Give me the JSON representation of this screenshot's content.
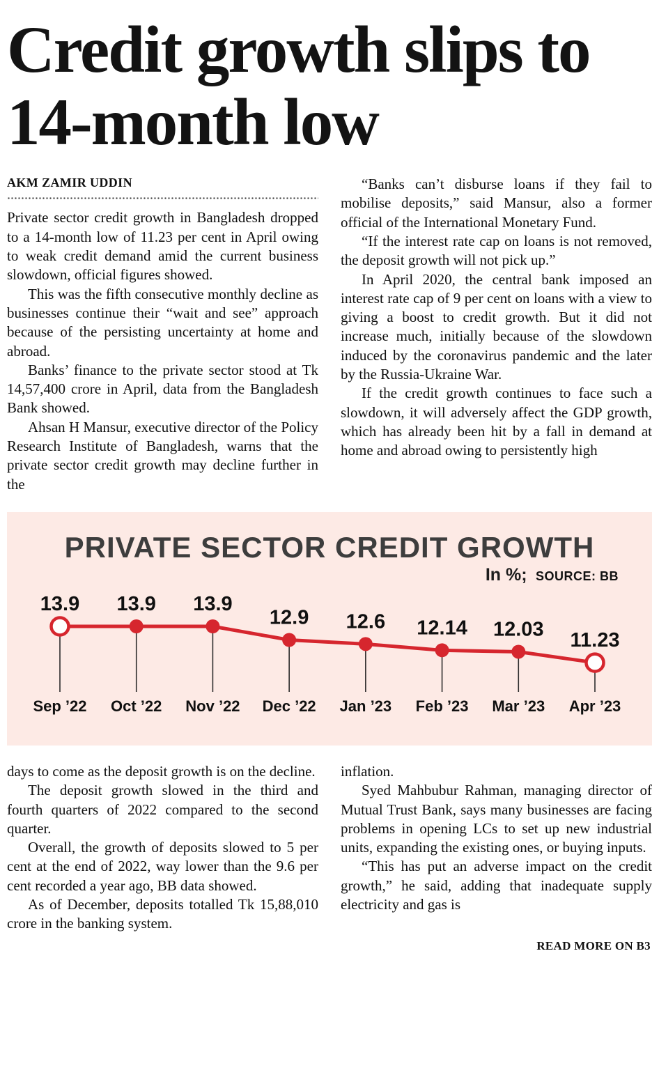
{
  "article": {
    "headline": "Credit growth slips to 14-month low",
    "byline": "AKM ZAMIR UDDIN",
    "read_more": "READ MORE ON B3",
    "top_left_paragraphs": [
      {
        "indent": false,
        "text": "Private sector credit growth in Bangladesh dropped to a 14-month low of 11.23 per cent in April owing to weak credit demand amid the current business slowdown, official figures showed."
      },
      {
        "indent": true,
        "text": "This was the fifth consecutive monthly decline as businesses continue their “wait and see” approach because of the persisting uncertainty at home and abroad."
      },
      {
        "indent": true,
        "text": "Banks’ finance to the private sector stood at Tk 14,57,400 crore in April, data from the Bangladesh Bank showed."
      },
      {
        "indent": true,
        "text": "Ahsan H Mansur, executive director of the Policy Research Institute of Bangladesh, warns that the private sector credit growth may decline further in the"
      }
    ],
    "top_right_paragraphs": [
      {
        "indent": true,
        "text": "“Banks can’t disburse loans if they fail to mobilise deposits,” said Mansur, also a former official of the International Monetary Fund."
      },
      {
        "indent": true,
        "text": "“If the interest rate cap on loans is not removed, the deposit growth will not pick up.”"
      },
      {
        "indent": true,
        "text": "In April 2020, the central bank imposed an interest rate cap of 9 per cent on loans with a view to giving a boost to credit growth. But it did not increase much, initially because of the slowdown induced by the coronavirus pandemic and the later by the Russia-Ukraine War."
      },
      {
        "indent": true,
        "text": "If the credit growth continues to face such a slowdown, it will adversely affect the GDP growth, which has already been hit by a fall in demand at home and abroad owing to persistently high"
      }
    ],
    "bottom_left_paragraphs": [
      {
        "indent": false,
        "text": "days to come as the deposit growth is on the decline."
      },
      {
        "indent": true,
        "text": "The deposit growth slowed in the third and fourth quarters of 2022 compared to the second quarter."
      },
      {
        "indent": true,
        "text": "Overall, the growth of deposits slowed to 5 per cent at the end of 2022, way lower than the 9.6 per cent recorded a year ago, BB data showed."
      },
      {
        "indent": true,
        "text": "As of December, deposits totalled Tk 15,88,010 crore in the banking system."
      }
    ],
    "bottom_right_paragraphs": [
      {
        "indent": false,
        "text": "inflation."
      },
      {
        "indent": true,
        "text": "Syed Mahbubur Rahman, managing director of Mutual Trust Bank, says many businesses are facing problems in opening LCs to set up new industrial units, expanding the existing ones, or buying inputs."
      },
      {
        "indent": true,
        "text": "“This has put an adverse impact on the credit growth,” he said, adding that inadequate supply electricity and gas is"
      }
    ]
  },
  "chart_data": {
    "type": "line",
    "title": "PRIVATE SECTOR CREDIT GROWTH",
    "unit_label": "In %;",
    "source_label": "SOURCE: BB",
    "categories": [
      "Sep ’22",
      "Oct ’22",
      "Nov ’22",
      "Dec ’22",
      "Jan ’23",
      "Feb ’23",
      "Mar ’23",
      "Apr ’23"
    ],
    "values": [
      13.9,
      13.9,
      13.9,
      12.9,
      12.6,
      12.14,
      12.03,
      11.23
    ],
    "value_labels": [
      "13.9",
      "13.9",
      "13.9",
      "12.9",
      "12.6",
      "12.14",
      "12.03",
      "11.23"
    ],
    "ylim": [
      11,
      14.2
    ],
    "grid": false,
    "legend": "none",
    "line_color": "#d6262e",
    "background_color": "#fdeae5",
    "open_point_indices": [
      0,
      7
    ]
  }
}
